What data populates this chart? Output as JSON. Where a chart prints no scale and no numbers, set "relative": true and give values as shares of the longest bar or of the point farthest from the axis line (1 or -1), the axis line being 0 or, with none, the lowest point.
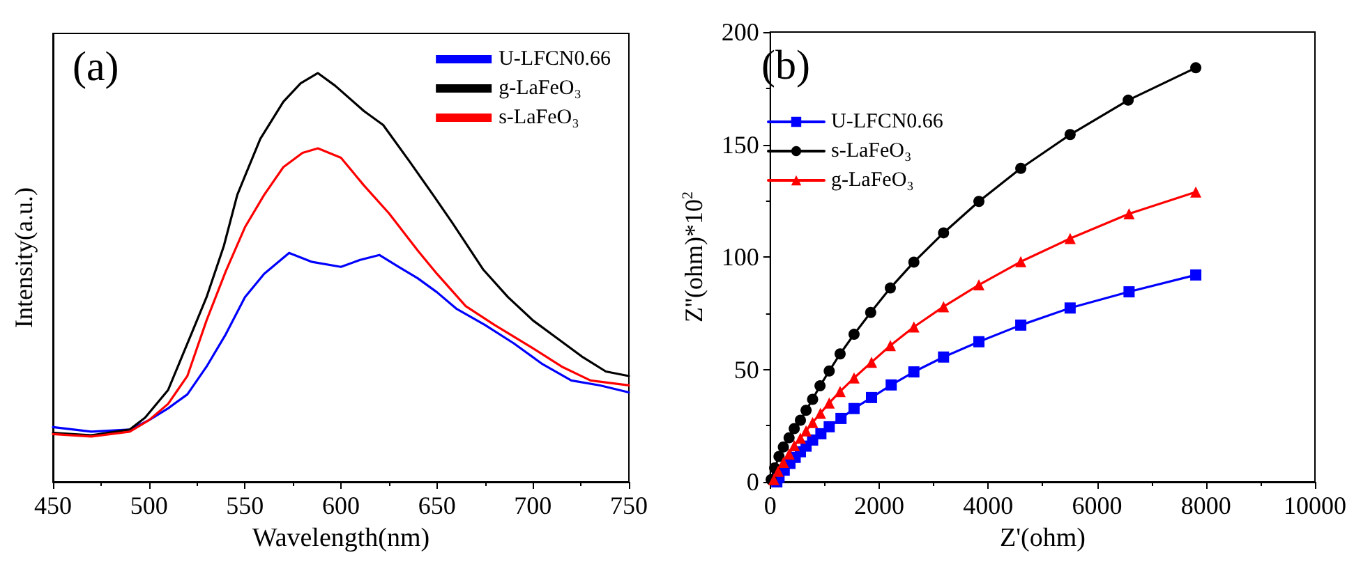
{
  "chart_data": [
    {
      "type": "line",
      "title": "(a)",
      "xlabel": "Wavelength(nm)",
      "ylabel": "Intensity(a.u.)",
      "relative": true,
      "xlim": [
        450,
        750
      ],
      "xticks": [
        450,
        500,
        550,
        600,
        650,
        700,
        750
      ],
      "legend": "top right",
      "grid": false,
      "marker": "none",
      "line_style": "solid",
      "series": [
        {
          "name": "U-LFCN0.66",
          "color": "#0000ff",
          "x": [
            450,
            470,
            490,
            500,
            510,
            520,
            530,
            540,
            550,
            560,
            573,
            585,
            600,
            610,
            620,
            630,
            640,
            650,
            660,
            675,
            690,
            705,
            720,
            735,
            750
          ],
          "values": [
            0.134,
            0.123,
            0.128,
            0.151,
            0.18,
            0.214,
            0.282,
            0.361,
            0.452,
            0.509,
            0.56,
            0.538,
            0.526,
            0.543,
            0.555,
            0.526,
            0.498,
            0.464,
            0.424,
            0.384,
            0.339,
            0.288,
            0.248,
            0.236,
            0.219
          ]
        },
        {
          "name": "g-LaFeO₃",
          "color": "#000000",
          "x": [
            450,
            470,
            490,
            498,
            510,
            522,
            530,
            539,
            546,
            550,
            558,
            570,
            579,
            588,
            597,
            612,
            622,
            636,
            648,
            658,
            674,
            687,
            700,
            713,
            726,
            738,
            750
          ],
          "values": [
            0.12,
            0.114,
            0.128,
            0.157,
            0.225,
            0.361,
            0.452,
            0.577,
            0.702,
            0.748,
            0.839,
            0.93,
            0.975,
            1.0,
            0.969,
            0.907,
            0.873,
            0.782,
            0.702,
            0.634,
            0.52,
            0.452,
            0.395,
            0.35,
            0.305,
            0.27,
            0.259
          ]
        },
        {
          "name": "s-LaFeO₃",
          "color": "#ff0000",
          "x": [
            450,
            470,
            490,
            500,
            510,
            520,
            530,
            540,
            550,
            560,
            570,
            580,
            588,
            600,
            612,
            625,
            640,
            650,
            665,
            680,
            700,
            715,
            730,
            750
          ],
          "values": [
            0.117,
            0.111,
            0.123,
            0.151,
            0.191,
            0.259,
            0.395,
            0.515,
            0.623,
            0.702,
            0.77,
            0.805,
            0.816,
            0.793,
            0.725,
            0.657,
            0.566,
            0.509,
            0.43,
            0.384,
            0.327,
            0.282,
            0.248,
            0.236
          ]
        }
      ]
    },
    {
      "type": "line",
      "title": "(b)",
      "xlabel": "Z'(ohm)",
      "ylabel": "Z''(ohm)*10$^{2}$",
      "xlim": [
        0,
        10000
      ],
      "xticks": [
        0,
        2000,
        4000,
        6000,
        8000,
        10000
      ],
      "ylim": [
        0,
        200
      ],
      "yticks": [
        0,
        50,
        100,
        150,
        200
      ],
      "legend": "top left",
      "grid": false,
      "line_style": "solid",
      "series": [
        {
          "name": "U-LFCN0.66",
          "color": "#0000ff",
          "marker": "square",
          "x": [
            120,
            160,
            256,
            361,
            457,
            553,
            657,
            777,
            929,
            1082,
            1298,
            1538,
            1859,
            2220,
            2636,
            3181,
            3830,
            4599,
            5505,
            6587,
            7812
          ],
          "values": [
            0,
            2.1,
            5.2,
            8.2,
            10.9,
            13.4,
            15.9,
            18.6,
            21.4,
            24.5,
            28.2,
            32.6,
            37.5,
            43.1,
            48.9,
            55.5,
            62.3,
            69.7,
            77.3,
            84.5,
            92.0
          ]
        },
        {
          "name": "s-LaFeO₃",
          "color": "#000000",
          "marker": "circle",
          "x": [
            16,
            80,
            160,
            240,
            345,
            440,
            553,
            657,
            777,
            913,
            1082,
            1282,
            1538,
            1843,
            2204,
            2636,
            3181,
            3830,
            4599,
            5505,
            6571,
            7812
          ],
          "values": [
            1,
            6.2,
            11.3,
            15.5,
            19.6,
            23.7,
            27.4,
            31.8,
            36.7,
            42.7,
            49.3,
            56.9,
            65.6,
            75.3,
            86.2,
            97.7,
            110.7,
            124.7,
            139.4,
            154.4,
            169.7,
            184.1
          ]
        },
        {
          "name": "g-LaFeO₃",
          "color": "#ff0000",
          "marker": "triangle",
          "x": [
            64,
            144,
            240,
            345,
            440,
            553,
            657,
            777,
            921,
            1082,
            1282,
            1538,
            1859,
            2204,
            2636,
            3181,
            3830,
            4599,
            5505,
            6587,
            7812
          ],
          "values": [
            1,
            4.7,
            8.7,
            12.4,
            16.1,
            19.4,
            22.7,
            26.4,
            30.5,
            35.1,
            40.2,
            46.2,
            53.2,
            60.6,
            68.9,
            77.9,
            87.6,
            97.9,
            108.2,
            119.2,
            128.9
          ]
        }
      ]
    }
  ]
}
